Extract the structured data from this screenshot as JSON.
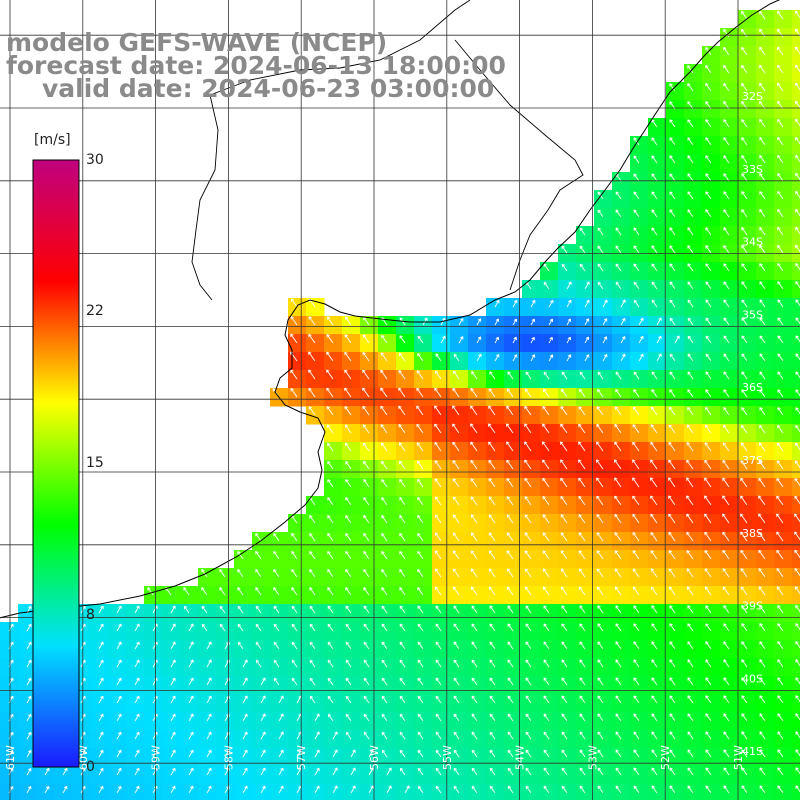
{
  "title": {
    "line1": "modelo GEFS-WAVE (NCEP)",
    "line2": "forecast date: 2024-06-13 18:00:00",
    "line3": "valid date: 2024-06-23 03:00:00"
  },
  "colorbar": {
    "unit": "[m/s]",
    "ticks": [
      "30",
      "22",
      "15",
      "8",
      "0"
    ],
    "tick_values": [
      30,
      22,
      15,
      8,
      0
    ],
    "range": [
      0,
      30
    ],
    "colors": [
      "#1a1aff",
      "#00e0ff",
      "#00ff00",
      "#ffff00",
      "#ff0000",
      "#c00080"
    ]
  },
  "map": {
    "lon_labels": [
      "61W",
      "60W",
      "59W",
      "58W",
      "57W",
      "56W",
      "55W",
      "54W",
      "53W",
      "52W",
      "51W"
    ],
    "lat_labels": [
      "32S",
      "33S",
      "34S",
      "35S",
      "36S",
      "37S",
      "38S",
      "39S",
      "40S",
      "41S"
    ],
    "lon_range": [
      -61.1,
      -50.1
    ],
    "lat_range": [
      -41.3,
      -30.3
    ],
    "grid": true,
    "field": "wind speed (m/s) with direction arrows"
  }
}
